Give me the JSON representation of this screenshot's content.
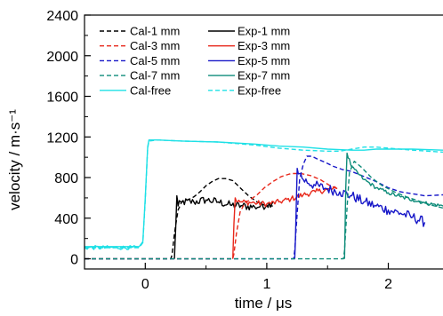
{
  "chart_data": {
    "type": "line",
    "title": "",
    "xlabel": "time / μs",
    "ylabel": "velocity / m·s⁻¹",
    "xlim": [
      -0.5,
      2.45
    ],
    "ylim": [
      -100,
      2400
    ],
    "x_ticks": [
      0,
      1,
      2
    ],
    "x_tick_labels": [
      "0",
      "1",
      "2"
    ],
    "y_ticks": [
      0,
      400,
      800,
      1200,
      1600,
      2000,
      2400
    ],
    "y_tick_labels": [
      "0",
      "400",
      "800",
      "1200",
      "1600",
      "2000",
      "2400"
    ],
    "grid": false,
    "legend_position": "top-center",
    "series": [
      {
        "name": "Cal-1 mm",
        "color": "#000000",
        "dash": true,
        "noise": 0,
        "x": [
          -0.5,
          0.21,
          0.22,
          0.24,
          0.27,
          0.3,
          0.35,
          0.4,
          0.45,
          0.5,
          0.55,
          0.6,
          0.66,
          0.72,
          0.78,
          0.85,
          0.92,
          1.0,
          1.05
        ],
        "y": [
          0,
          0,
          40,
          250,
          480,
          560,
          580,
          610,
          660,
          720,
          760,
          790,
          790,
          770,
          700,
          620,
          560,
          520,
          520
        ]
      },
      {
        "name": "Exp-1 mm",
        "color": "#000000",
        "dash": false,
        "noise": 40,
        "x": [
          0.24,
          0.25,
          0.26,
          0.27,
          0.3,
          0.4,
          0.5,
          0.6,
          0.7,
          0.8,
          0.9,
          1.0,
          1.05
        ],
        "y": [
          0,
          300,
          620,
          520,
          560,
          560,
          580,
          560,
          530,
          520,
          510,
          530,
          560
        ]
      },
      {
        "name": "Cal-3 mm",
        "color": "#e8291c",
        "dash": true,
        "noise": 0,
        "x": [
          -0.5,
          0.72,
          0.73,
          0.75,
          0.78,
          0.82,
          0.86,
          0.92,
          0.98,
          1.05,
          1.12,
          1.2,
          1.28,
          1.36,
          1.44,
          1.52,
          1.58
        ],
        "y": [
          0,
          0,
          50,
          250,
          460,
          550,
          580,
          630,
          700,
          760,
          810,
          840,
          840,
          820,
          780,
          720,
          690
        ]
      },
      {
        "name": "Exp-3 mm",
        "color": "#e8291c",
        "dash": false,
        "noise": 28,
        "x": [
          0.72,
          0.73,
          0.74,
          0.76,
          0.8,
          0.9,
          1.0,
          1.1,
          1.2,
          1.3,
          1.4,
          1.5,
          1.58
        ],
        "y": [
          0,
          350,
          600,
          560,
          560,
          550,
          540,
          560,
          590,
          630,
          660,
          680,
          690
        ]
      },
      {
        "name": "Cal-5 mm",
        "color": "#1717c8",
        "dash": true,
        "noise": 0,
        "x": [
          -0.5,
          1.22,
          1.23,
          1.25,
          1.27,
          1.3,
          1.33,
          1.37,
          1.42,
          1.48,
          1.55,
          1.62,
          1.7,
          1.8,
          1.9,
          2.0,
          2.1,
          2.2,
          2.3,
          2.45
        ],
        "y": [
          0,
          0,
          80,
          450,
          780,
          930,
          1010,
          1010,
          980,
          950,
          910,
          880,
          860,
          810,
          760,
          700,
          660,
          640,
          620,
          630
        ]
      },
      {
        "name": "Exp-5 mm",
        "color": "#1717c8",
        "dash": false,
        "noise": 50,
        "x": [
          1.23,
          1.24,
          1.25,
          1.27,
          1.3,
          1.4,
          1.5,
          1.6,
          1.7,
          1.8,
          1.9,
          2.0,
          2.1,
          2.2,
          2.3
        ],
        "y": [
          0,
          400,
          890,
          840,
          780,
          720,
          690,
          660,
          620,
          560,
          520,
          480,
          450,
          410,
          360
        ]
      },
      {
        "name": "Cal-7 mm",
        "color": "#0f8c7a",
        "dash": true,
        "noise": 0,
        "x": [
          -0.5,
          1.63,
          1.64,
          1.66,
          1.68,
          1.72,
          1.78,
          1.86,
          1.95,
          2.05,
          2.15,
          2.25,
          2.35,
          2.45
        ],
        "y": [
          0,
          0,
          80,
          500,
          850,
          960,
          900,
          800,
          720,
          660,
          610,
          570,
          530,
          500
        ]
      },
      {
        "name": "Exp-7 mm",
        "color": "#0f8c7a",
        "dash": false,
        "noise": 18,
        "x": [
          1.64,
          1.65,
          1.66,
          1.7,
          1.8,
          1.9,
          2.0,
          2.1,
          2.2,
          2.3,
          2.45
        ],
        "y": [
          0,
          700,
          1040,
          900,
          780,
          700,
          650,
          610,
          580,
          550,
          520
        ]
      },
      {
        "name": "Cal-free",
        "color": "#1fe0e6",
        "dash": false,
        "noise": 0,
        "x": [
          -0.5,
          -0.05,
          -0.02,
          0.0,
          0.02,
          0.03,
          0.1,
          0.3,
          0.6,
          0.9,
          1.1,
          1.3,
          1.5,
          1.6,
          1.7,
          1.8,
          1.9,
          2.0,
          2.2,
          2.45
        ],
        "y": [
          120,
          120,
          170,
          600,
          1100,
          1170,
          1170,
          1160,
          1150,
          1130,
          1110,
          1100,
          1080,
          1075,
          1070,
          1070,
          1080,
          1080,
          1080,
          1070
        ]
      },
      {
        "name": "Exp-free",
        "color": "#1fe0e6",
        "dash": true,
        "noise": 0,
        "x": [
          -0.5,
          -0.05,
          -0.02,
          0.0,
          0.02,
          0.03,
          0.1,
          0.3,
          0.6,
          0.9,
          1.1,
          1.3,
          1.5,
          1.6,
          1.7,
          1.8,
          1.9,
          2.0,
          2.2,
          2.45
        ],
        "y": [
          110,
          110,
          160,
          580,
          1090,
          1160,
          1170,
          1160,
          1150,
          1120,
          1090,
          1070,
          1060,
          1060,
          1080,
          1100,
          1100,
          1090,
          1070,
          1050
        ]
      }
    ],
    "noisy_overlays": [
      {
        "name": "Exp-free-noise",
        "color": "#1fe0e6",
        "noise": 20,
        "x": [
          -0.5,
          -0.06
        ],
        "y": [
          110,
          110
        ]
      }
    ]
  }
}
